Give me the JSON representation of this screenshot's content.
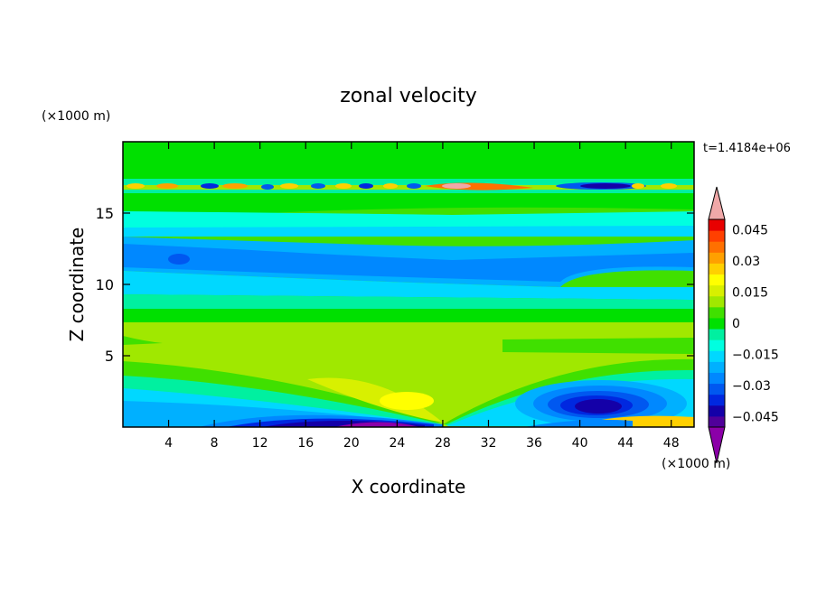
{
  "chart_data": {
    "type": "heatmap",
    "title": "zonal velocity",
    "xlabel": "X coordinate",
    "ylabel": "Z coordinate",
    "x_unit": "(×1000 m)",
    "y_unit": "(×1000 m)",
    "time_label": "t=1.4184e+06",
    "xlim": [
      0,
      50
    ],
    "ylim": [
      0,
      20
    ],
    "x_ticks": [
      4,
      8,
      12,
      16,
      20,
      24,
      28,
      32,
      36,
      40,
      44,
      48
    ],
    "y_ticks": [
      5,
      10,
      15
    ],
    "colorbar": {
      "levels": [
        -0.05,
        -0.045,
        -0.04,
        -0.035,
        -0.03,
        -0.025,
        -0.02,
        -0.015,
        -0.01,
        -0.005,
        0,
        0.005,
        0.01,
        0.015,
        0.02,
        0.025,
        0.03,
        0.035,
        0.04,
        0.045,
        0.05
      ],
      "tick_labels": [
        "0.045",
        "0.03",
        "0.015",
        "0",
        "−0.015",
        "−0.03",
        "−0.045"
      ],
      "tick_values": [
        0.045,
        0.03,
        0.015,
        0,
        -0.015,
        -0.03,
        -0.045
      ],
      "colors": [
        "#8b00a8",
        "#50009a",
        "#1400a8",
        "#0028e0",
        "#0058f0",
        "#0088ff",
        "#00b0ff",
        "#00d8ff",
        "#00ffe0",
        "#00f0a0",
        "#00e000",
        "#40e000",
        "#a0e800",
        "#d8f000",
        "#ffff00",
        "#ffd000",
        "#ffa000",
        "#ff7000",
        "#ff4000",
        "#e80000",
        "#f0a8a8"
      ],
      "extend": "both"
    },
    "features": [
      {
        "name": "lower-strong-negative-core",
        "x": 42,
        "z": 1.3,
        "value": -0.04
      },
      {
        "name": "left-surface-jet",
        "x": 22,
        "z": 0.3,
        "value": -0.045
      },
      {
        "name": "positive-lobe",
        "x": 24,
        "z": 2.0,
        "value": 0.02
      },
      {
        "name": "upper-positive-jet",
        "x": 30,
        "z": 16.8,
        "value": 0.05
      },
      {
        "name": "upper-negative-jet",
        "x": 42,
        "z": 16.8,
        "value": -0.045
      },
      {
        "name": "mid-negative-band",
        "x": 20,
        "z": 11.5,
        "value": -0.02
      }
    ]
  }
}
